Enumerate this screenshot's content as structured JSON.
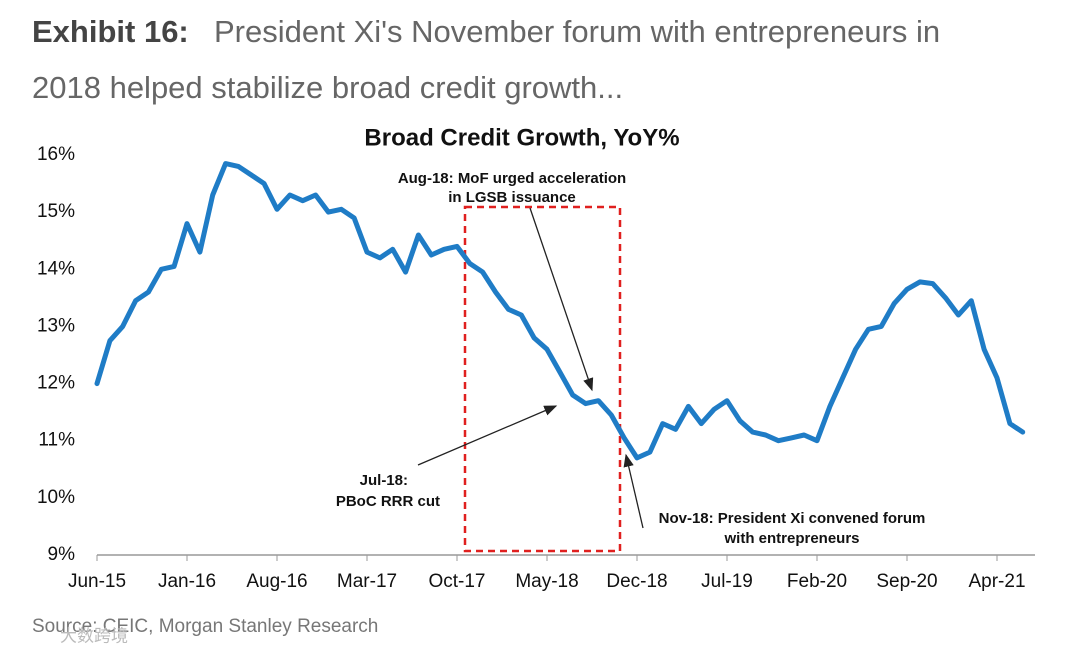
{
  "header": {
    "exhibit": "Exhibit 16:",
    "title_line1": "President Xi's November forum with entrepreneurs in",
    "title_line2": "2018 helped stabilize broad credit growth..."
  },
  "chart_data": {
    "type": "line",
    "title": "Broad Credit Growth, YoY%",
    "categories": [
      "Jun-15",
      null,
      null,
      null,
      null,
      null,
      null,
      "Jan-16",
      null,
      null,
      null,
      null,
      null,
      null,
      "Aug-16",
      null,
      null,
      null,
      null,
      null,
      null,
      "Mar-17",
      null,
      null,
      null,
      null,
      null,
      null,
      "Oct-17",
      null,
      null,
      null,
      null,
      null,
      null,
      "May-18",
      null,
      null,
      null,
      null,
      null,
      null,
      "Dec-18",
      null,
      null,
      null,
      null,
      null,
      null,
      "Jul-19",
      null,
      null,
      null,
      null,
      null,
      null,
      "Feb-20",
      null,
      null,
      null,
      null,
      null,
      null,
      "Sep-20",
      null,
      null,
      null,
      null,
      null,
      null,
      "Apr-21",
      null,
      null
    ],
    "series": [
      {
        "name": "Broad Credit Growth",
        "color": "#1f7cc6",
        "values": [
          12.0,
          12.75,
          13.0,
          13.45,
          13.6,
          14.0,
          14.05,
          14.8,
          14.3,
          15.3,
          15.85,
          15.8,
          15.65,
          15.5,
          15.05,
          15.3,
          15.2,
          15.3,
          15.0,
          15.05,
          14.9,
          14.3,
          14.2,
          14.35,
          13.95,
          14.6,
          14.25,
          14.35,
          14.4,
          14.1,
          13.95,
          13.6,
          13.3,
          13.2,
          12.8,
          12.6,
          12.2,
          11.8,
          11.65,
          11.7,
          11.45,
          11.05,
          10.7,
          10.8,
          11.3,
          11.2,
          11.6,
          11.3,
          11.55,
          11.7,
          11.35,
          11.15,
          11.1,
          11.0,
          11.05,
          11.1,
          11.0,
          11.6,
          12.1,
          12.6,
          12.95,
          13.0,
          13.4,
          13.65,
          13.78,
          13.75,
          13.5,
          13.2,
          13.45,
          12.6,
          12.1,
          11.3,
          11.15
        ]
      }
    ],
    "ylim": [
      9,
      16
    ],
    "yticks": [
      {
        "value": 9,
        "label": "9%"
      },
      {
        "value": 10,
        "label": "10%"
      },
      {
        "value": 11,
        "label": "11%"
      },
      {
        "value": 12,
        "label": "12%"
      },
      {
        "value": 13,
        "label": "13%"
      },
      {
        "value": 14,
        "label": "14%"
      },
      {
        "value": 15,
        "label": "15%"
      },
      {
        "value": 16,
        "label": "16%"
      }
    ],
    "annotations": [
      {
        "lines": [
          "Aug-18: MoF urged acceleration",
          "in LGSB issuance"
        ]
      },
      {
        "lines": [
          "Jul-18:",
          "PBoC RRR cut"
        ]
      },
      {
        "lines": [
          "Nov-18: President Xi convened forum",
          "with entrepreneurs"
        ]
      }
    ]
  },
  "source": "Source: CEIC, Morgan Stanley Research",
  "watermark": "大数跨境"
}
